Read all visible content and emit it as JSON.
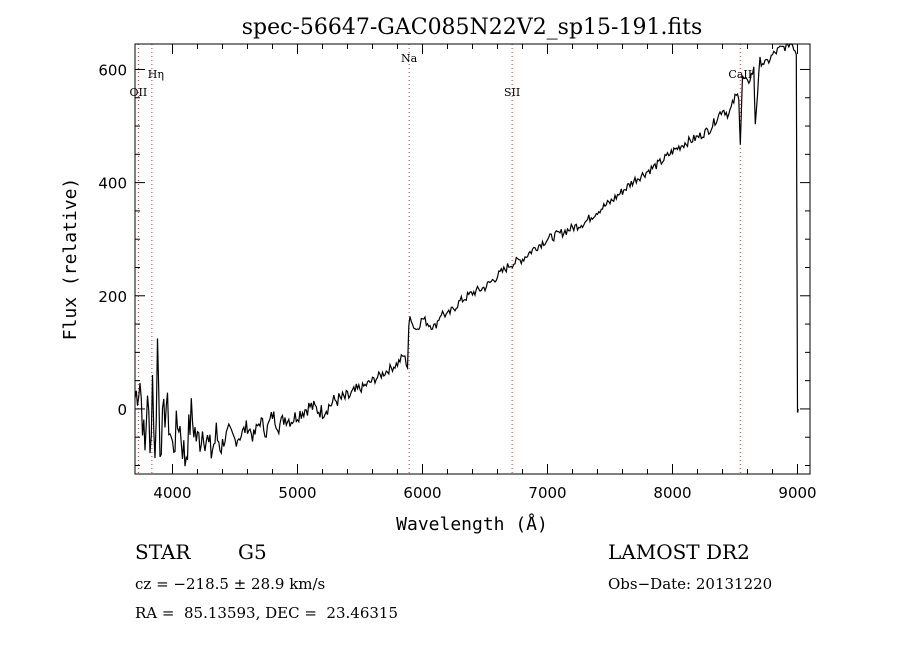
{
  "chart_data": {
    "type": "line",
    "title": "spec-56647-GAC085N22V2_sp15-191.fits",
    "xlabel": "Wavelength (Å)",
    "ylabel": "Flux (relative)",
    "xlim": [
      3700,
      9100
    ],
    "ylim": [
      -115,
      645
    ],
    "xticks": [
      4000,
      5000,
      6000,
      7000,
      8000,
      9000
    ],
    "yticks": [
      0,
      200,
      400,
      600
    ],
    "xtick_labels": [
      "4000",
      "5000",
      "6000",
      "7000",
      "8000",
      "9000"
    ],
    "ytick_labels": [
      "0",
      "200",
      "400",
      "600"
    ],
    "lines": [
      {
        "label": "Hη",
        "x": 3835
      },
      {
        "label": "OII",
        "x": 3727
      },
      {
        "label": "Na",
        "x": 5893
      },
      {
        "label": "SII",
        "x": 6717
      },
      {
        "label": "CaII",
        "x": 8542
      }
    ],
    "series": [
      {
        "name": "spectrum",
        "x": [
          3700,
          3740,
          3780,
          3800,
          3820,
          3840,
          3860,
          3880,
          3900,
          3950,
          4000,
          4050,
          4100,
          4150,
          4200,
          4250,
          4300,
          4350,
          4400,
          4450,
          4500,
          4550,
          4600,
          4650,
          4700,
          4750,
          4800,
          4850,
          4900,
          4950,
          5000,
          5100,
          5200,
          5300,
          5400,
          5500,
          5600,
          5700,
          5800,
          5850,
          5880,
          5890,
          5900,
          5920,
          5950,
          6000,
          6050,
          6100,
          6150,
          6200,
          6300,
          6400,
          6500,
          6600,
          6700,
          6800,
          6900,
          7000,
          7100,
          7200,
          7300,
          7400,
          7500,
          7600,
          7700,
          7800,
          7900,
          8000,
          8100,
          8200,
          8300,
          8400,
          8450,
          8500,
          8530,
          8542,
          8560,
          8600,
          8650,
          8662,
          8700,
          8750,
          8800,
          8850,
          8900,
          8950,
          8990,
          9000,
          9005
        ],
        "values": [
          20,
          50,
          -80,
          40,
          -90,
          60,
          -100,
          120,
          -60,
          10,
          -70,
          -20,
          -90,
          -10,
          -60,
          -30,
          -80,
          -50,
          -60,
          -40,
          -55,
          -45,
          -30,
          -50,
          -20,
          -40,
          -10,
          -30,
          -15,
          -20,
          -10,
          5,
          -5,
          15,
          20,
          35,
          50,
          65,
          80,
          95,
          75,
          140,
          170,
          150,
          140,
          160,
          150,
          145,
          170,
          165,
          190,
          205,
          215,
          235,
          255,
          265,
          285,
          300,
          310,
          320,
          330,
          350,
          365,
          385,
          405,
          420,
          435,
          455,
          470,
          480,
          495,
          530,
          520,
          550,
          555,
          470,
          585,
          575,
          600,
          505,
          615,
          610,
          625,
          635,
          640,
          650,
          630,
          0,
          0
        ]
      }
    ]
  },
  "info": {
    "class_label": "STAR",
    "subclass_label": "G5",
    "survey_label": "LAMOST DR2",
    "cz_text": "cz = −218.5 ± 28.9 km/s",
    "obs_date_text": "Obs−Date: 20131220",
    "coords_text": "RA =  85.13593, DEC =  23.46315"
  },
  "colors": {
    "line_marker": "#d03030",
    "spectrum": "#000000",
    "axes": "#000000"
  }
}
